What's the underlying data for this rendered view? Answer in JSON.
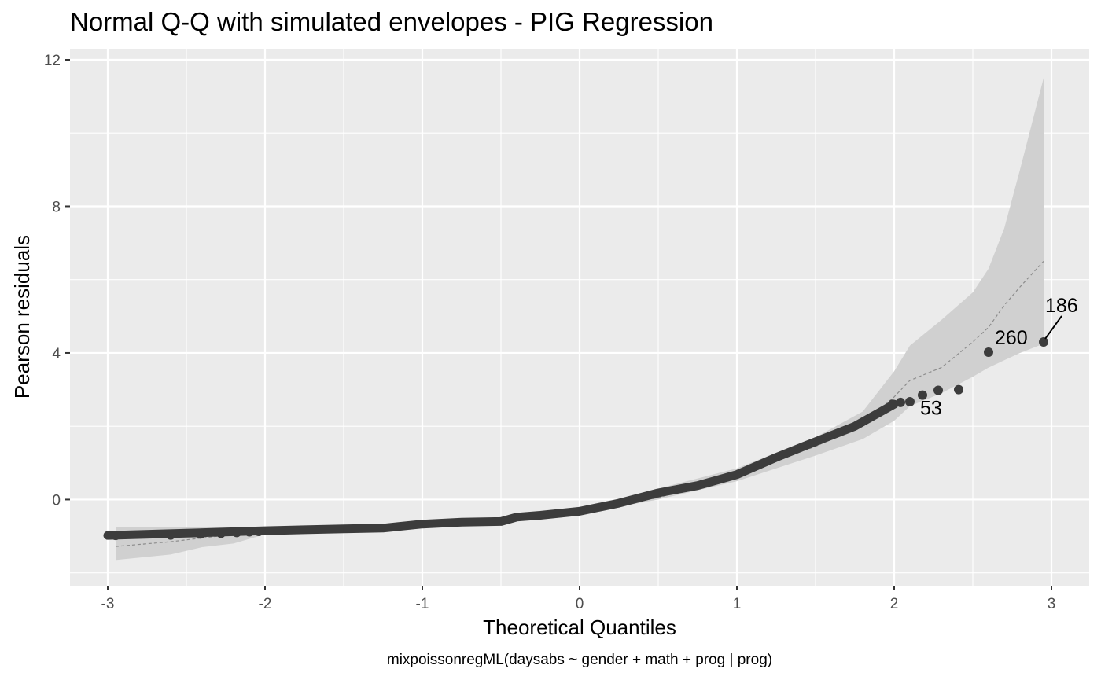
{
  "chart_data": {
    "type": "scatter",
    "title": "Normal Q-Q with simulated envelopes - PIG Regression",
    "xlabel": "Theoretical Quantiles",
    "ylabel": "Pearson residuals",
    "caption": "mixpoissonregML(daysabs ~ gender + math + prog | prog)",
    "xlim": [
      -3.24,
      3.24
    ],
    "ylim": [
      -2.35,
      12.3
    ],
    "x_ticks": [
      -3,
      -2,
      -1,
      0,
      1,
      2,
      3
    ],
    "x_tick_labels": [
      "-3",
      "-2",
      "-1",
      "0",
      "1",
      "2",
      "3"
    ],
    "y_ticks": [
      0,
      4,
      8,
      12
    ],
    "y_tick_labels": [
      "0",
      "4",
      "8",
      "12"
    ],
    "grid": true,
    "point_color": "#3c3c3c",
    "envelope_color": "#d0d0d0",
    "panel_background": "#ebebeb",
    "residual_curve": {
      "description": "sorted Pearson residuals vs theoretical quantiles",
      "x": [
        -3.0,
        -2.5,
        -2.0,
        -1.5,
        -1.25,
        -1.0,
        -0.75,
        -0.5,
        -0.4,
        -0.25,
        0.0,
        0.25,
        0.5,
        0.75,
        1.0,
        1.25,
        1.5,
        1.75,
        2.0
      ],
      "y": [
        -0.98,
        -0.92,
        -0.85,
        -0.8,
        -0.78,
        -0.67,
        -0.62,
        -0.6,
        -0.48,
        -0.43,
        -0.32,
        -0.1,
        0.18,
        0.38,
        0.68,
        1.15,
        1.58,
        2.0,
        2.6
      ]
    },
    "points": [
      {
        "x": -2.95,
        "y": -0.98
      },
      {
        "x": -2.6,
        "y": -0.97
      },
      {
        "x": -2.41,
        "y": -0.94
      },
      {
        "x": -2.28,
        "y": -0.92
      },
      {
        "x": -2.18,
        "y": -0.9
      },
      {
        "x": -2.1,
        "y": -0.88
      },
      {
        "x": -2.04,
        "y": -0.87
      },
      {
        "x": 1.99,
        "y": 2.6
      },
      {
        "x": 2.04,
        "y": 2.65
      },
      {
        "x": 2.1,
        "y": 2.67
      },
      {
        "x": 2.18,
        "y": 2.85
      },
      {
        "x": 2.28,
        "y": 2.98
      },
      {
        "x": 2.41,
        "y": 3.0
      },
      {
        "x": 2.6,
        "y": 4.02
      },
      {
        "x": 2.95,
        "y": 4.3
      }
    ],
    "envelope": {
      "x": [
        -2.95,
        -2.6,
        -2.4,
        -2.2,
        -2.0,
        -1.5,
        -1.0,
        -0.5,
        0.0,
        0.5,
        1.0,
        1.5,
        1.8,
        2.0,
        2.1,
        2.3,
        2.5,
        2.6,
        2.7,
        2.8,
        2.95
      ],
      "lower": [
        -1.65,
        -1.5,
        -1.3,
        -1.2,
        -0.95,
        -0.82,
        -0.72,
        -0.62,
        -0.4,
        0.0,
        0.5,
        1.2,
        1.65,
        2.15,
        2.55,
        2.9,
        3.35,
        3.6,
        3.8,
        4.0,
        4.25
      ],
      "upper": [
        -0.75,
        -0.75,
        -0.75,
        -0.75,
        -0.75,
        -0.72,
        -0.62,
        -0.52,
        -0.25,
        0.3,
        0.85,
        1.7,
        2.4,
        3.5,
        4.2,
        4.9,
        5.65,
        6.3,
        7.4,
        9.0,
        11.5
      ],
      "mean": [
        -1.28,
        -1.15,
        -1.05,
        -0.95,
        -0.86,
        -0.8,
        -0.68,
        -0.58,
        -0.33,
        0.05,
        0.68,
        1.45,
        2.05,
        2.8,
        3.25,
        3.6,
        4.3,
        4.7,
        5.3,
        5.8,
        6.5
      ]
    },
    "annotations": [
      {
        "label": "186",
        "x": 2.95,
        "y": 4.3,
        "leader": true
      },
      {
        "label": "260",
        "x": 2.6,
        "y": 4.02,
        "leader": false
      },
      {
        "label": "53",
        "x": 2.18,
        "y": 2.85,
        "leader": false
      }
    ]
  }
}
